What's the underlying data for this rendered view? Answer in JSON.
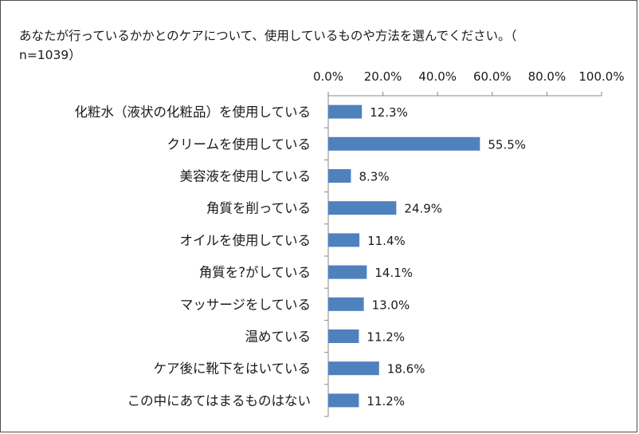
{
  "chart_data": {
    "type": "bar",
    "orientation": "horizontal",
    "title": "あなたが行っているかかとのケアについて、使用しているものや方法を選んでください。（n=1039）",
    "title_lines": [
      "あなたが行っているかかとのケアについて、使用しているものや方法を選んでください。（",
      "n=1039）"
    ],
    "categories": [
      "化粧水（液状の化粧品）を使用している",
      "クリームを使用している",
      "美容液を使用している",
      "角質を削っている",
      "オイルを使用している",
      "角質を?がしている",
      "マッサージをしている",
      "温めている",
      "ケア後に靴下をはいている",
      "この中にあてはまるものはない"
    ],
    "values": [
      12.3,
      55.5,
      8.3,
      24.9,
      11.4,
      14.1,
      13.0,
      11.2,
      18.6,
      11.2
    ],
    "value_labels": [
      "12.3%",
      "55.5%",
      "8.3%",
      "24.9%",
      "11.4%",
      "14.1%",
      "13.0%",
      "11.2%",
      "18.6%",
      "11.2%"
    ],
    "xlim": [
      0,
      100
    ],
    "x_ticks": [
      0,
      20,
      40,
      60,
      80,
      100
    ],
    "x_tick_labels": [
      "0.0%",
      "20.0%",
      "40.0%",
      "60.0%",
      "80.0%",
      "100.0%"
    ],
    "x_axis_position": "top",
    "grid": false,
    "legend": "none",
    "bar_color": "#4f81bd"
  }
}
